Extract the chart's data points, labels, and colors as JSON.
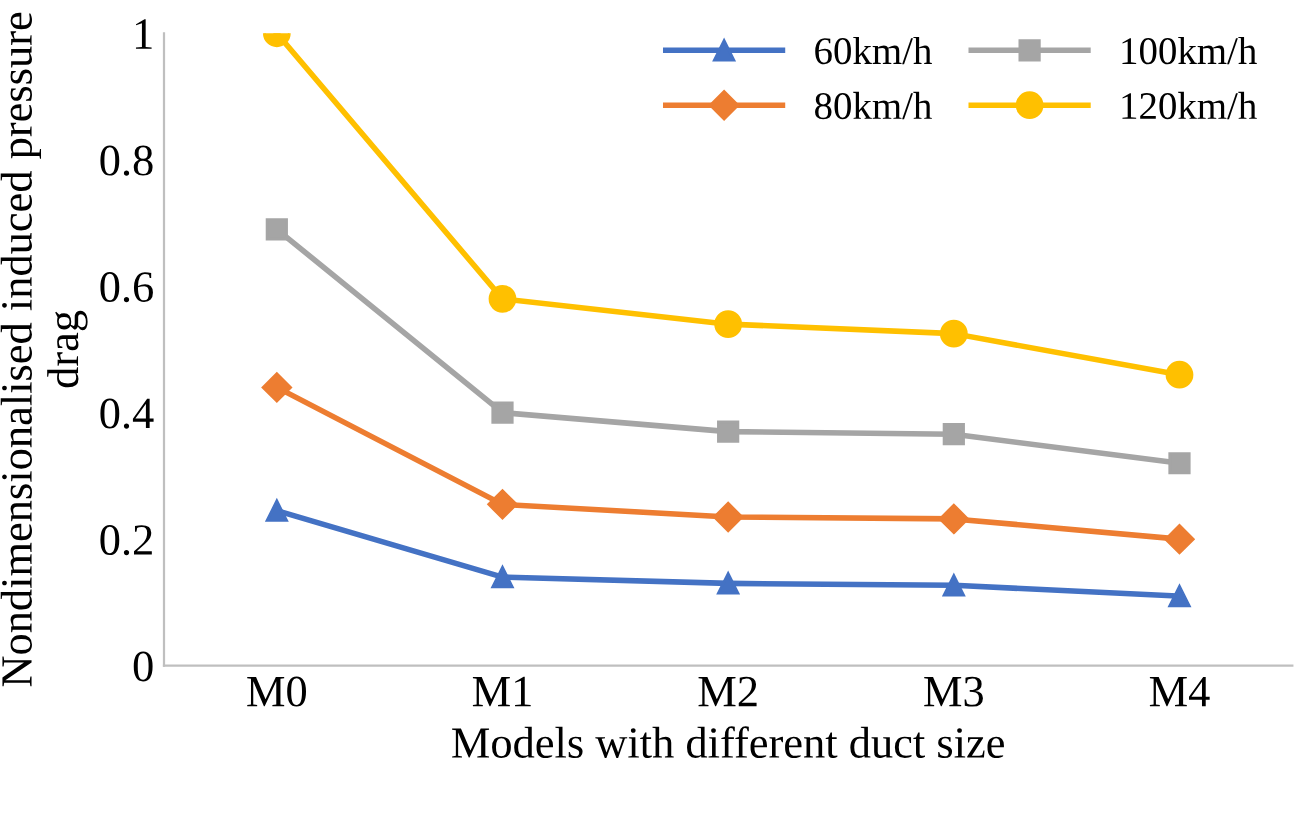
{
  "chart_data": {
    "type": "line",
    "xlabel": "Models with different duct size",
    "ylabel": "Nondimensionalised induced pressure drag",
    "categories": [
      "M0",
      "M1",
      "M2",
      "M3",
      "M4"
    ],
    "series": [
      {
        "name": "60km/h",
        "color": "#4472c4",
        "marker": "triangle",
        "values": [
          0.245,
          0.14,
          0.13,
          0.127,
          0.11
        ]
      },
      {
        "name": "80km/h",
        "color": "#ed7d31",
        "marker": "diamond",
        "values": [
          0.44,
          0.255,
          0.235,
          0.232,
          0.2
        ]
      },
      {
        "name": "100km/h",
        "color": "#a5a5a5",
        "marker": "square",
        "values": [
          0.69,
          0.4,
          0.37,
          0.366,
          0.32
        ]
      },
      {
        "name": "120km/h",
        "color": "#ffc000",
        "marker": "circle",
        "values": [
          1.0,
          0.58,
          0.54,
          0.525,
          0.46
        ]
      }
    ],
    "ylim": [
      0,
      1
    ],
    "yticks": [
      0,
      0.2,
      0.4,
      0.6,
      0.8,
      1
    ],
    "grid": false,
    "legend": "top right",
    "line_style": "solid"
  }
}
